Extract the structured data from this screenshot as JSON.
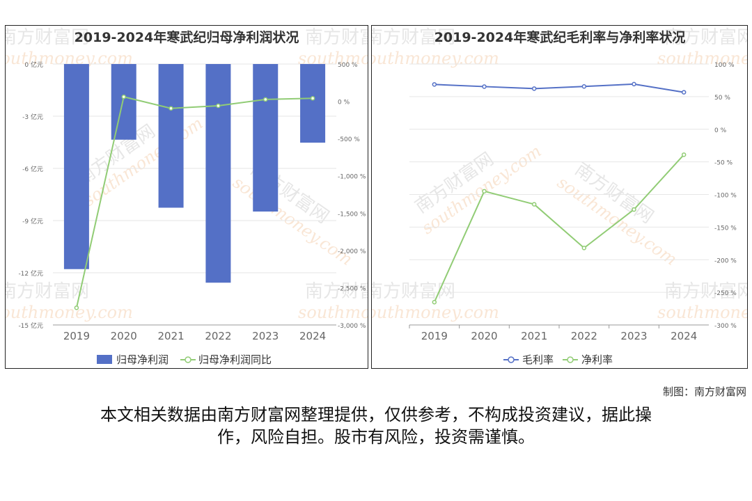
{
  "credit": "制图：南方财富网",
  "disclaimer_line1": "本文相关数据由南方财富网整理提供，仅供参考，不构成投资建议，据此操",
  "disclaimer_line2": "作，风险自担。股市有风险，投资需谨慎。",
  "watermark": {
    "cn": "南方财富网",
    "en": "southmoney.com"
  },
  "chart_data": [
    {
      "type": "bar",
      "title": "2019-2024年寒武纪归母净利润状况",
      "categories": [
        "2019",
        "2020",
        "2021",
        "2022",
        "2023",
        "2024"
      ],
      "series": [
        {
          "name": "归母净利润",
          "type": "bar",
          "axis": "left",
          "color": "#5470c6",
          "values": [
            -11.79,
            -4.35,
            -8.26,
            -12.57,
            -8.48,
            -4.52
          ]
        },
        {
          "name": "归母净利润同比",
          "type": "line",
          "axis": "right",
          "color": "#91cc75",
          "values": [
            -2770,
            60,
            -95,
            -60,
            25,
            40
          ]
        }
      ],
      "left_axis": {
        "ylim": [
          -15,
          0
        ],
        "ticks": [
          0,
          -3,
          -6,
          -9,
          -12,
          -15
        ],
        "tick_labels": [
          "0 亿元",
          "-3 亿元",
          "-6 亿元",
          "-9 亿元",
          "-12 亿元",
          "-15 亿元"
        ]
      },
      "right_axis": {
        "ylim": [
          -3000,
          500
        ],
        "ticks": [
          500,
          0,
          -500,
          -1000,
          -1500,
          -2000,
          -2500,
          -3000
        ],
        "tick_labels": [
          "500 %",
          "0 %",
          "-500 %",
          "-1,000 %",
          "-1,500 %",
          "-2,000 %",
          "-2,500 %",
          "-3,000 %"
        ]
      },
      "grid": true,
      "legend_position": "bottom"
    },
    {
      "type": "line",
      "title": "2019-2024年寒武纪毛利率与净利率状况",
      "categories": [
        "2019",
        "2020",
        "2021",
        "2022",
        "2023",
        "2024"
      ],
      "series": [
        {
          "name": "毛利率",
          "color": "#5470c6",
          "values": [
            68.7,
            65.4,
            62.3,
            65.6,
            69.2,
            56.7
          ]
        },
        {
          "name": "净利率",
          "color": "#91cc75",
          "values": [
            -265,
            -95,
            -115,
            -182,
            -123,
            -39
          ]
        }
      ],
      "right_axis": {
        "ylim": [
          -300,
          100
        ],
        "ticks": [
          100,
          50,
          0,
          -50,
          -100,
          -150,
          -200,
          -250,
          -300
        ],
        "tick_labels": [
          "100 %",
          "50 %",
          "0 %",
          "-50 %",
          "-100 %",
          "-150 %",
          "-200 %",
          "-250 %",
          "-300 %"
        ]
      },
      "grid": true,
      "legend_position": "bottom"
    }
  ]
}
